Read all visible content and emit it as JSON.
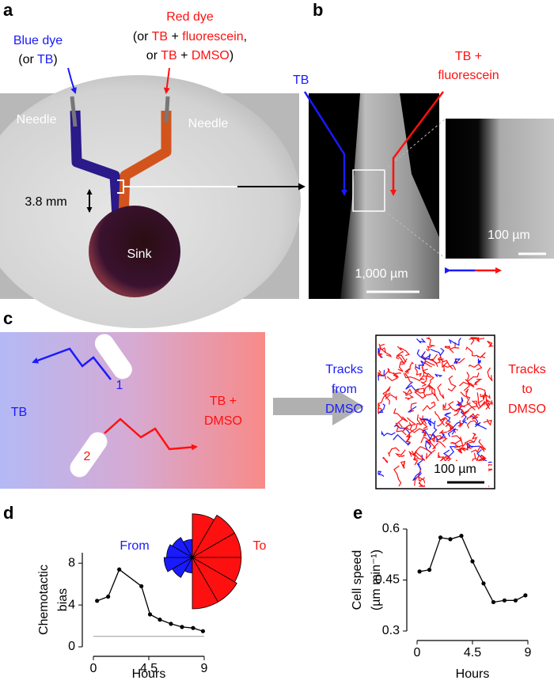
{
  "panels": {
    "a": {
      "letter": "a",
      "blue_title": "Blue dye",
      "blue_sub": [
        "(or ",
        "TB",
        ")"
      ],
      "red_title": "Red dye",
      "red_line1": [
        "(or ",
        "TB",
        " + ",
        "fluorescein",
        ","
      ],
      "red_line2": [
        "or ",
        "TB",
        " + ",
        "DMSO",
        ")"
      ],
      "needle_left": "Needle",
      "needle_right": "Needle",
      "scale": "3.8 mm",
      "sink": "Sink"
    },
    "b": {
      "letter": "b",
      "tb": "TB",
      "tb_fluor": [
        "TB +",
        "fluorescein"
      ],
      "inset_scale": "100 µm",
      "scale": "1,000 µm"
    },
    "c": {
      "letter": "c",
      "tb": "TB",
      "cell_1": "1",
      "cell_2": "2",
      "tb_dmso": [
        "TB +",
        "DMSO"
      ],
      "tracks_from": [
        "Tracks",
        "from",
        "DMSO"
      ],
      "tracks_to": [
        "Tracks",
        "to",
        "DMSO"
      ],
      "scale": "100 µm"
    },
    "d": {
      "letter": "d"
    },
    "e": {
      "letter": "e"
    }
  },
  "chart_data": [
    {
      "type": "line",
      "ylabel": [
        "Chemotactic",
        "bias"
      ],
      "xlabel": "Hours",
      "color": "#000000",
      "x": [
        0.3,
        1.2,
        2.1,
        3.9,
        4.6,
        5.4,
        6.3,
        7.2,
        8.1,
        8.9
      ],
      "values": [
        4.4,
        4.8,
        7.4,
        5.8,
        3.1,
        2.6,
        2.2,
        1.9,
        1.8,
        1.5
      ],
      "xlim": [
        0,
        9
      ],
      "xticks": [
        0,
        4.5,
        9
      ],
      "ylim": [
        0,
        9
      ],
      "yticks": [
        0,
        4,
        8
      ],
      "reference_line": 1
    },
    {
      "type": "rose",
      "rlim": [
        0,
        1
      ],
      "series": [
        {
          "name": "From",
          "color": "#1a1aff",
          "values": [
            0.3,
            0.45,
            0.55,
            0.5,
            0.45,
            0.35
          ]
        },
        {
          "name": "To",
          "color": "#ff1010",
          "values": [
            0.85,
            0.95,
            0.95,
            0.95,
            1.0,
            1.0
          ]
        }
      ]
    },
    {
      "type": "line",
      "ylabel": [
        "Cell speed",
        "(µm min⁻¹)"
      ],
      "xlabel": "Hours",
      "color": "#000000",
      "x": [
        0.2,
        1.0,
        1.9,
        2.7,
        3.6,
        4.5,
        5.4,
        6.2,
        7.1,
        8.0,
        8.8
      ],
      "values": [
        0.475,
        0.48,
        0.575,
        0.57,
        0.58,
        0.505,
        0.44,
        0.385,
        0.39,
        0.39,
        0.405
      ],
      "xlim": [
        0,
        9
      ],
      "xticks": [
        0,
        4.5,
        9
      ],
      "ylim": [
        0.3,
        0.6
      ],
      "yticks": [
        0.3,
        0.45,
        0.6
      ]
    }
  ]
}
